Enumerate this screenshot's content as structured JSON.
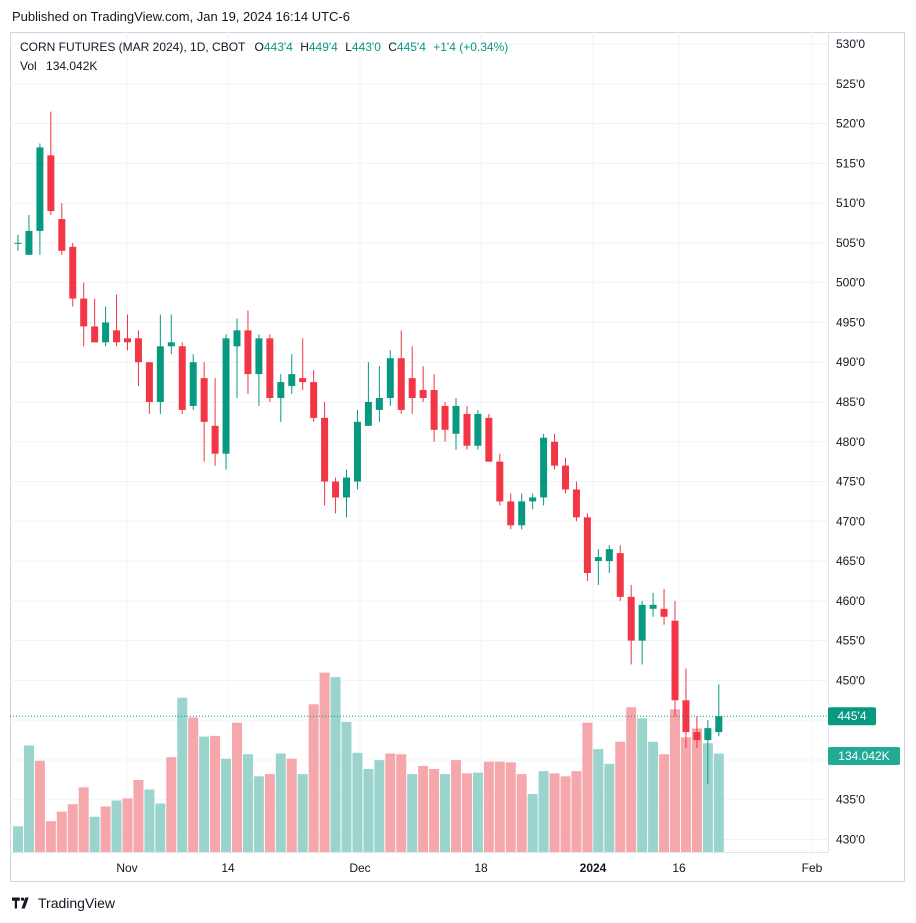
{
  "header": {
    "published": "Published on TradingView.com, Jan 19, 2024 16:14 UTC-6"
  },
  "legend": {
    "symbol": "CORN FUTURES (MAR 2024), 1D, CBOT",
    "o_label": "O",
    "o_value": "443'4",
    "h_label": "H",
    "h_value": "449'4",
    "l_label": "L",
    "l_value": "443'0",
    "c_label": "C",
    "c_value": "445'4",
    "change": "+1'4 (+0.34%)",
    "vol_label": "Vol",
    "vol_value": "134.042K"
  },
  "footer": {
    "brand": "TradingView"
  },
  "chart_data": {
    "type": "candlestick",
    "colors": {
      "up": "#089981",
      "down": "#f23645",
      "up_vol": "#9ad4cd",
      "down_vol": "#f5a7ab",
      "grid": "#f0f3fa",
      "last_price": "#089981"
    },
    "y_axis": {
      "ticks": [
        "530'0",
        "525'0",
        "520'0",
        "515'0",
        "510'0",
        "505'0",
        "500'0",
        "495'0",
        "490'0",
        "485'0",
        "480'0",
        "475'0",
        "470'0",
        "465'0",
        "460'0",
        "455'0",
        "450'0",
        "445'0",
        "440'0",
        "435'0",
        "430'0"
      ],
      "range": [
        430,
        530
      ]
    },
    "x_axis": {
      "ticks": [
        "Nov",
        "14",
        "Dec",
        "18",
        "2024",
        "16",
        "Feb"
      ]
    },
    "last_price_label": "445'4",
    "last_volume_label": "134.042K",
    "candles": [
      {
        "o": 505,
        "h": 506,
        "l": 504,
        "c": 505
      },
      {
        "o": 503.5,
        "h": 508.5,
        "l": 503.5,
        "c": 506.5
      },
      {
        "o": 506.5,
        "h": 517.5,
        "l": 503.5,
        "c": 517
      },
      {
        "o": 516,
        "h": 521.5,
        "l": 508.5,
        "c": 509
      },
      {
        "o": 508,
        "h": 510,
        "l": 503.5,
        "c": 504
      },
      {
        "o": 504.5,
        "h": 505,
        "l": 497,
        "c": 498
      },
      {
        "o": 498,
        "h": 500,
        "l": 492,
        "c": 494.5
      },
      {
        "o": 494.5,
        "h": 498,
        "l": 492.5,
        "c": 492.5
      },
      {
        "o": 492.5,
        "h": 497,
        "l": 492,
        "c": 495
      },
      {
        "o": 494,
        "h": 498.5,
        "l": 492,
        "c": 492.5
      },
      {
        "o": 493,
        "h": 496,
        "l": 491.5,
        "c": 492.5
      },
      {
        "o": 493,
        "h": 494,
        "l": 487,
        "c": 490
      },
      {
        "o": 490,
        "h": 490,
        "l": 483.5,
        "c": 485
      },
      {
        "o": 485,
        "h": 496,
        "l": 483.5,
        "c": 492
      },
      {
        "o": 492,
        "h": 496,
        "l": 491,
        "c": 492.5
      },
      {
        "o": 492,
        "h": 492.5,
        "l": 483.5,
        "c": 484
      },
      {
        "o": 484.5,
        "h": 491,
        "l": 484,
        "c": 490
      },
      {
        "o": 488,
        "h": 490,
        "l": 477.5,
        "c": 482.5
      },
      {
        "o": 482,
        "h": 488,
        "l": 477,
        "c": 478.5
      },
      {
        "o": 478.5,
        "h": 493.5,
        "l": 476.5,
        "c": 493
      },
      {
        "o": 492,
        "h": 495.5,
        "l": 485.5,
        "c": 494
      },
      {
        "o": 494,
        "h": 496.5,
        "l": 486,
        "c": 488.5
      },
      {
        "o": 488.5,
        "h": 493.5,
        "l": 484.5,
        "c": 493
      },
      {
        "o": 493,
        "h": 493.5,
        "l": 485,
        "c": 485.5
      },
      {
        "o": 485.5,
        "h": 488.5,
        "l": 482.5,
        "c": 487.5
      },
      {
        "o": 487,
        "h": 491,
        "l": 486,
        "c": 488.5
      },
      {
        "o": 488,
        "h": 493,
        "l": 486.5,
        "c": 487.5
      },
      {
        "o": 487.5,
        "h": 489,
        "l": 482.5,
        "c": 483
      },
      {
        "o": 483,
        "h": 485,
        "l": 472,
        "c": 475
      },
      {
        "o": 475,
        "h": 475.5,
        "l": 471,
        "c": 473
      },
      {
        "o": 473,
        "h": 476.5,
        "l": 470.5,
        "c": 475.5
      },
      {
        "o": 475,
        "h": 484,
        "l": 474,
        "c": 482.5
      },
      {
        "o": 482,
        "h": 490,
        "l": 482,
        "c": 485
      },
      {
        "o": 484,
        "h": 489.5,
        "l": 482.5,
        "c": 485.5
      },
      {
        "o": 485.5,
        "h": 491.5,
        "l": 484.5,
        "c": 490.5
      },
      {
        "o": 490.5,
        "h": 494,
        "l": 483.5,
        "c": 484
      },
      {
        "o": 488,
        "h": 492,
        "l": 483.5,
        "c": 485.5
      },
      {
        "o": 486.5,
        "h": 489.5,
        "l": 485,
        "c": 485.5
      },
      {
        "o": 486.5,
        "h": 488.5,
        "l": 480,
        "c": 481.5
      },
      {
        "o": 484.5,
        "h": 485,
        "l": 480,
        "c": 481.5
      },
      {
        "o": 481,
        "h": 485.5,
        "l": 479,
        "c": 484.5
      },
      {
        "o": 483.5,
        "h": 484.5,
        "l": 479,
        "c": 479.5
      },
      {
        "o": 479.5,
        "h": 484,
        "l": 479,
        "c": 483.5
      },
      {
        "o": 483,
        "h": 483.5,
        "l": 477.5,
        "c": 477.5
      },
      {
        "o": 477.5,
        "h": 478.5,
        "l": 472,
        "c": 472.5
      },
      {
        "o": 472.5,
        "h": 473.5,
        "l": 469,
        "c": 469.5
      },
      {
        "o": 469.5,
        "h": 473.5,
        "l": 469,
        "c": 472.5
      },
      {
        "o": 472.5,
        "h": 473.5,
        "l": 471.5,
        "c": 473
      },
      {
        "o": 473,
        "h": 481,
        "l": 472,
        "c": 480.5
      },
      {
        "o": 480,
        "h": 481,
        "l": 476.5,
        "c": 477
      },
      {
        "o": 477,
        "h": 478,
        "l": 473.5,
        "c": 474
      },
      {
        "o": 474,
        "h": 475,
        "l": 470,
        "c": 470.5
      },
      {
        "o": 470.5,
        "h": 471,
        "l": 462.5,
        "c": 463.5
      },
      {
        "o": 465,
        "h": 466.5,
        "l": 462,
        "c": 465.5
      },
      {
        "o": 465,
        "h": 467,
        "l": 463.5,
        "c": 466.5
      },
      {
        "o": 466,
        "h": 467,
        "l": 460,
        "c": 460.5
      },
      {
        "o": 460.5,
        "h": 462,
        "l": 452,
        "c": 455
      },
      {
        "o": 455,
        "h": 460,
        "l": 452,
        "c": 459.5
      },
      {
        "o": 459,
        "h": 461,
        "l": 458,
        "c": 459.5
      },
      {
        "o": 459,
        "h": 461.5,
        "l": 457,
        "c": 458
      },
      {
        "o": 457.5,
        "h": 460,
        "l": 445.5,
        "c": 447.5
      },
      {
        "o": 447.5,
        "h": 451.5,
        "l": 441.5,
        "c": 443.5
      },
      {
        "o": 443.5,
        "h": 445.5,
        "l": 441.5,
        "c": 442.5
      },
      {
        "o": 442.5,
        "h": 445,
        "l": 437,
        "c": 444
      },
      {
        "o": 443.5,
        "h": 449.5,
        "l": 443,
        "c": 445.5
      }
    ],
    "volumes": [
      {
        "v": 35,
        "dir": "up"
      },
      {
        "v": 145,
        "dir": "up"
      },
      {
        "v": 124,
        "dir": "down"
      },
      {
        "v": 42,
        "dir": "down"
      },
      {
        "v": 55,
        "dir": "down"
      },
      {
        "v": 65,
        "dir": "down"
      },
      {
        "v": 88,
        "dir": "down"
      },
      {
        "v": 48,
        "dir": "up"
      },
      {
        "v": 62,
        "dir": "down"
      },
      {
        "v": 70,
        "dir": "up"
      },
      {
        "v": 73,
        "dir": "down"
      },
      {
        "v": 98,
        "dir": "down"
      },
      {
        "v": 85,
        "dir": "up"
      },
      {
        "v": 66,
        "dir": "up"
      },
      {
        "v": 129,
        "dir": "down"
      },
      {
        "v": 210,
        "dir": "up"
      },
      {
        "v": 183,
        "dir": "down"
      },
      {
        "v": 157,
        "dir": "up"
      },
      {
        "v": 158,
        "dir": "down"
      },
      {
        "v": 127,
        "dir": "up"
      },
      {
        "v": 176,
        "dir": "down"
      },
      {
        "v": 133,
        "dir": "up"
      },
      {
        "v": 103,
        "dir": "up"
      },
      {
        "v": 106,
        "dir": "down"
      },
      {
        "v": 134,
        "dir": "up"
      },
      {
        "v": 127,
        "dir": "down"
      },
      {
        "v": 106,
        "dir": "up"
      },
      {
        "v": 201,
        "dir": "down"
      },
      {
        "v": 244,
        "dir": "down"
      },
      {
        "v": 238,
        "dir": "up"
      },
      {
        "v": 177,
        "dir": "up"
      },
      {
        "v": 135,
        "dir": "up"
      },
      {
        "v": 113,
        "dir": "up"
      },
      {
        "v": 125,
        "dir": "up"
      },
      {
        "v": 134,
        "dir": "down"
      },
      {
        "v": 133,
        "dir": "down"
      },
      {
        "v": 106,
        "dir": "up"
      },
      {
        "v": 117,
        "dir": "down"
      },
      {
        "v": 113,
        "dir": "down"
      },
      {
        "v": 106,
        "dir": "up"
      },
      {
        "v": 125,
        "dir": "down"
      },
      {
        "v": 107,
        "dir": "down"
      },
      {
        "v": 108,
        "dir": "up"
      },
      {
        "v": 123,
        "dir": "down"
      },
      {
        "v": 123,
        "dir": "down"
      },
      {
        "v": 122,
        "dir": "down"
      },
      {
        "v": 106,
        "dir": "down"
      },
      {
        "v": 79,
        "dir": "up"
      },
      {
        "v": 110,
        "dir": "up"
      },
      {
        "v": 107,
        "dir": "down"
      },
      {
        "v": 103,
        "dir": "down"
      },
      {
        "v": 110,
        "dir": "down"
      },
      {
        "v": 176,
        "dir": "down"
      },
      {
        "v": 140,
        "dir": "up"
      },
      {
        "v": 120,
        "dir": "up"
      },
      {
        "v": 150,
        "dir": "down"
      },
      {
        "v": 197,
        "dir": "down"
      },
      {
        "v": 182,
        "dir": "up"
      },
      {
        "v": 150,
        "dir": "up"
      },
      {
        "v": 133,
        "dir": "down"
      },
      {
        "v": 194,
        "dir": "down"
      },
      {
        "v": 156,
        "dir": "down"
      },
      {
        "v": 168,
        "dir": "down"
      },
      {
        "v": 148,
        "dir": "up"
      },
      {
        "v": 134,
        "dir": "up"
      }
    ]
  }
}
